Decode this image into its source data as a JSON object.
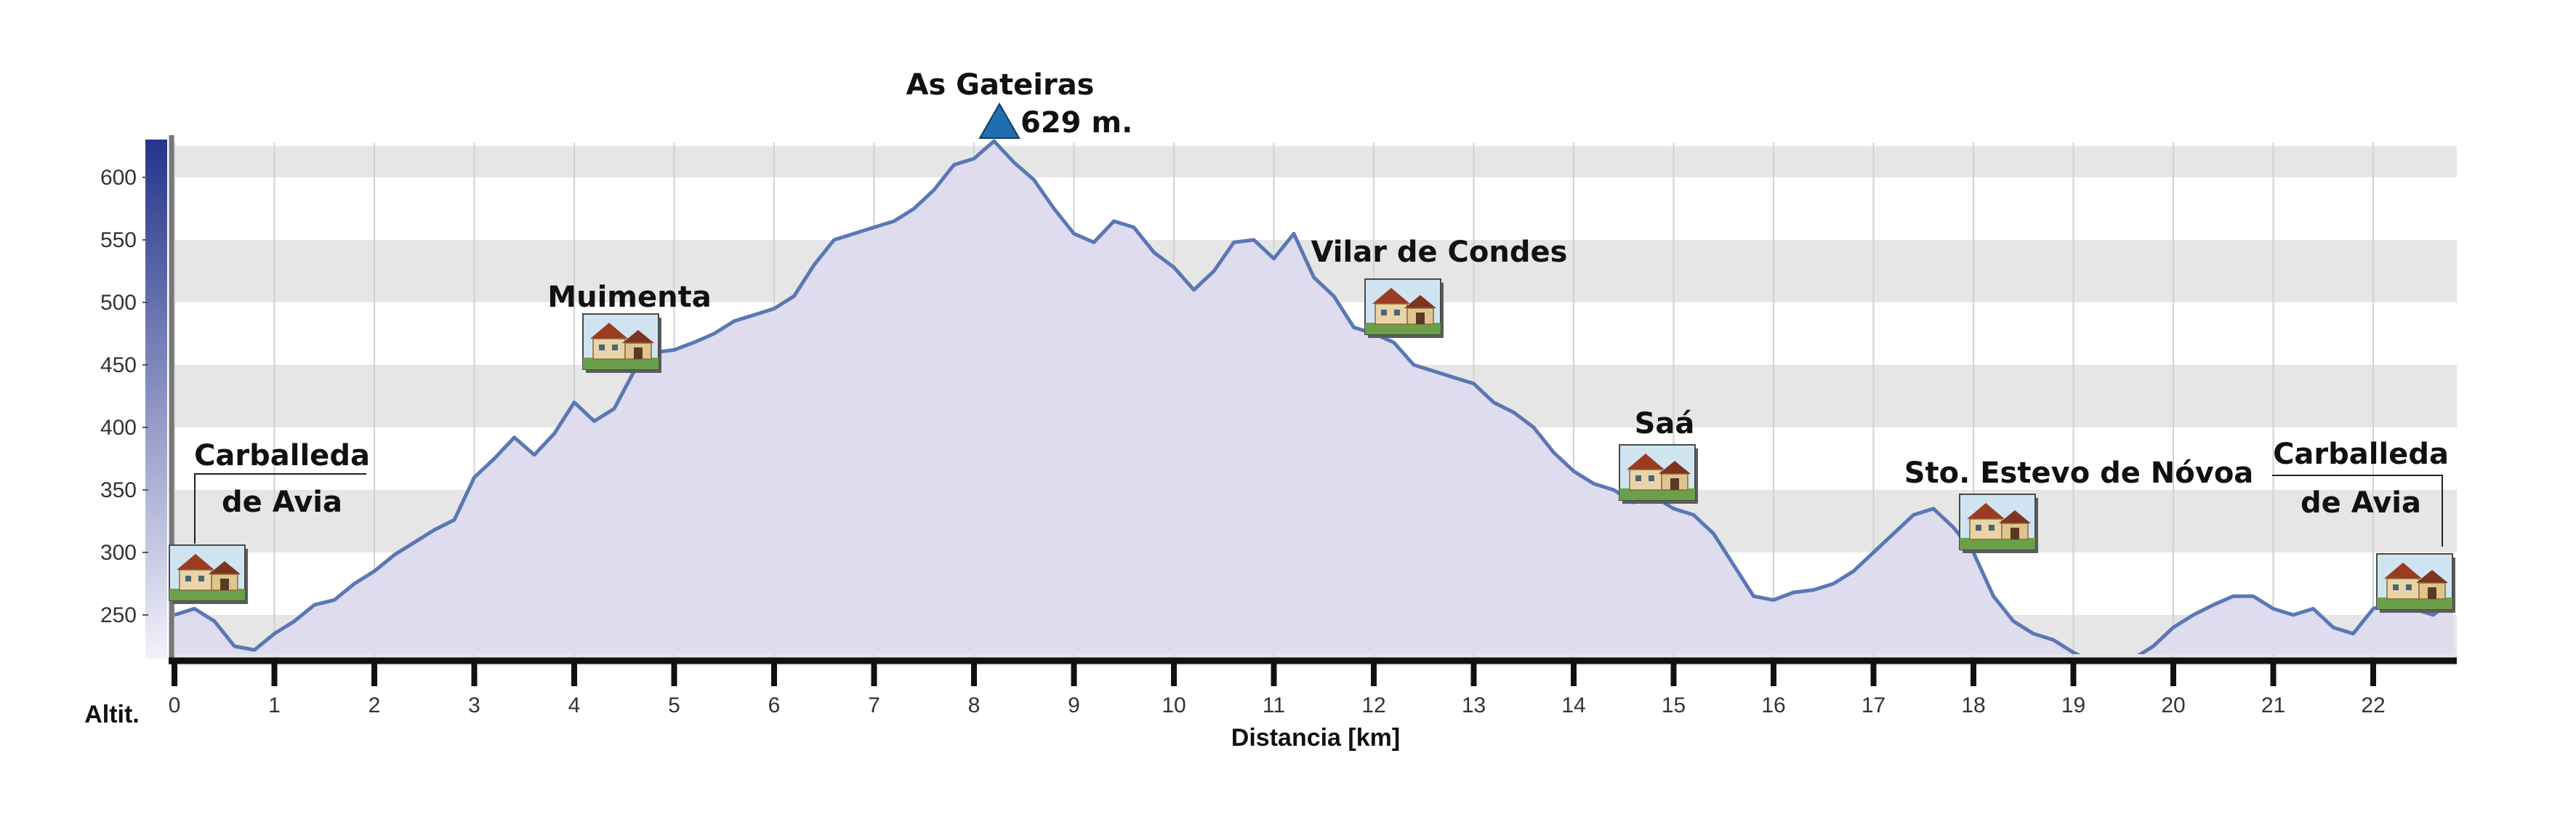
{
  "colors": {
    "background": "#ffffff",
    "band": "#e6e6e6",
    "area_fill": "#dedcee",
    "line": "#5a77b6",
    "scale_top": "#24348a",
    "scale_bottom": "#f2f1fb",
    "axis": "#111111",
    "summit_marker": "#1f6fb0"
  },
  "chart_data": {
    "type": "area",
    "xlabel": "Distancia [km]",
    "ylabel": "Altit.",
    "xlim": [
      0,
      22.8
    ],
    "ylim": [
      210,
      640
    ],
    "x_ticks": [
      "0",
      "1",
      "2",
      "3",
      "4",
      "5",
      "6",
      "7",
      "8",
      "9",
      "10",
      "11",
      "12",
      "13",
      "14",
      "15",
      "16",
      "17",
      "18",
      "19",
      "20",
      "21",
      "22"
    ],
    "y_ticks": [
      "250",
      "300",
      "350",
      "400",
      "450",
      "500",
      "550",
      "600"
    ],
    "grid": "horizontal-bands",
    "series": [
      {
        "x": [
          0,
          0.2,
          0.4,
          0.6,
          0.8,
          1.0,
          1.2,
          1.4,
          1.6,
          1.8,
          2.0,
          2.2,
          2.4,
          2.6,
          2.8,
          3.0,
          3.2,
          3.4,
          3.6,
          3.8,
          4.0,
          4.2,
          4.4,
          4.6,
          4.8,
          5.0,
          5.2,
          5.4,
          5.6,
          5.8,
          6.0,
          6.2,
          6.4,
          6.6,
          6.8,
          7.0,
          7.2,
          7.4,
          7.6,
          7.8,
          8.0,
          8.2,
          8.4,
          8.6,
          8.8,
          9.0,
          9.2,
          9.4,
          9.6,
          9.8,
          10.0,
          10.2,
          10.4,
          10.6,
          10.8,
          11.0,
          11.2,
          11.4,
          11.6,
          11.8,
          12.0,
          12.2,
          12.4,
          12.6,
          12.8,
          13.0,
          13.2,
          13.4,
          13.6,
          13.8,
          14.0,
          14.2,
          14.4,
          14.6,
          14.8,
          15.0,
          15.2,
          15.4,
          15.6,
          15.8,
          16.0,
          16.2,
          16.4,
          16.6,
          16.8,
          17.0,
          17.2,
          17.4,
          17.6,
          17.8,
          18.0,
          18.2,
          18.4,
          18.6,
          18.8,
          19.0,
          19.2,
          19.4,
          19.6,
          19.8,
          20.0,
          20.2,
          20.4,
          20.6,
          20.8,
          21.0,
          21.2,
          21.4,
          21.6,
          21.8,
          22.0,
          22.2,
          22.4,
          22.6,
          22.8
        ],
        "y": [
          250,
          255,
          245,
          225,
          222,
          235,
          245,
          258,
          262,
          275,
          285,
          298,
          308,
          318,
          326,
          360,
          375,
          392,
          378,
          395,
          420,
          405,
          415,
          445,
          460,
          462,
          468,
          475,
          485,
          490,
          495,
          505,
          530,
          550,
          555,
          560,
          565,
          575,
          590,
          610,
          615,
          629,
          612,
          598,
          575,
          555,
          548,
          565,
          560,
          540,
          528,
          510,
          525,
          548,
          550,
          535,
          555,
          520,
          505,
          480,
          475,
          468,
          450,
          445,
          440,
          435,
          420,
          412,
          400,
          380,
          365,
          355,
          350,
          340,
          345,
          335,
          330,
          315,
          290,
          265,
          262,
          268,
          270,
          275,
          285,
          300,
          315,
          330,
          335,
          320,
          300,
          265,
          245,
          235,
          230,
          220,
          212,
          212,
          215,
          225,
          240,
          250,
          258,
          265,
          265,
          255,
          250,
          255,
          240,
          235,
          255,
          260,
          255,
          250,
          262
        ]
      }
    ],
    "annotations": [
      {
        "text": "As Gateiras",
        "x": 8.2,
        "y": 629
      },
      {
        "text": "629 m.",
        "x": 8.2,
        "y": 629
      },
      {
        "text": "Muimenta",
        "x": 4.5,
        "y": 460
      },
      {
        "text": "Vilar de Condes",
        "x": 12.3,
        "y": 480
      },
      {
        "text": "Saá",
        "x": 14.8,
        "y": 345
      },
      {
        "text": "Sto. Estevo de Nóvoa",
        "x": 17.9,
        "y": 318
      },
      {
        "text": "Carballeda",
        "x": 0.3,
        "y": 250
      },
      {
        "text": "de Avia",
        "x": 0.3,
        "y": 250
      },
      {
        "text": "Carballeda",
        "x": 22.55,
        "y": 262
      },
      {
        "text": "de Avia",
        "x": 22.55,
        "y": 262
      }
    ]
  }
}
